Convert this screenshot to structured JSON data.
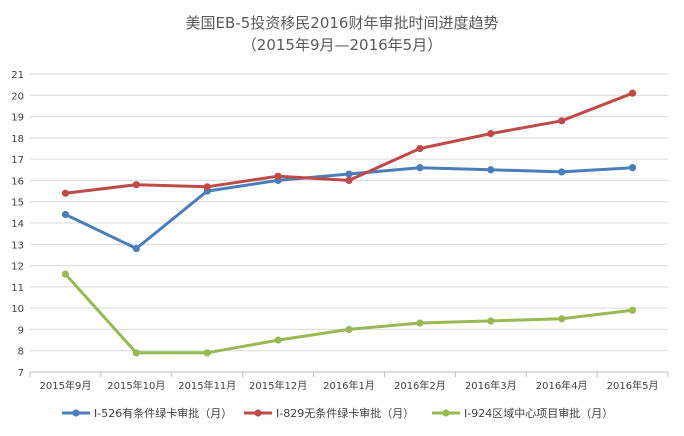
{
  "chart_data": {
    "type": "line",
    "title": "美国EB-5投资移民2016财年审批时间进度趋势",
    "subtitle": "（2015年9月—2016年5月）",
    "xlabel": "",
    "ylabel": "",
    "categories": [
      "2015年9月",
      "2015年10月",
      "2015年11月",
      "2015年12月",
      "2016年1月",
      "2016年2月",
      "2016年3月",
      "2016年4月",
      "2016年5月"
    ],
    "ylim": [
      7,
      21
    ],
    "yticks": [
      7,
      8,
      9,
      10,
      11,
      12,
      13,
      14,
      15,
      16,
      17,
      18,
      19,
      20,
      21
    ],
    "grid": true,
    "legend": "bottom",
    "series": [
      {
        "name": "I-526有条件绿卡审批（月）",
        "color": "#4a7ebb",
        "values": [
          14.4,
          12.8,
          15.5,
          16.0,
          16.3,
          16.6,
          16.5,
          16.4,
          16.6
        ]
      },
      {
        "name": "I-829无条件绿卡审批（月）",
        "color": "#be4b48",
        "values": [
          15.4,
          15.8,
          15.7,
          16.2,
          16.0,
          17.5,
          18.2,
          18.8,
          20.1
        ]
      },
      {
        "name": "I-924区域中心项目审批（月）",
        "color": "#98b954",
        "values": [
          11.6,
          7.9,
          7.9,
          8.5,
          9.0,
          9.3,
          9.4,
          9.5,
          9.9
        ]
      }
    ]
  }
}
